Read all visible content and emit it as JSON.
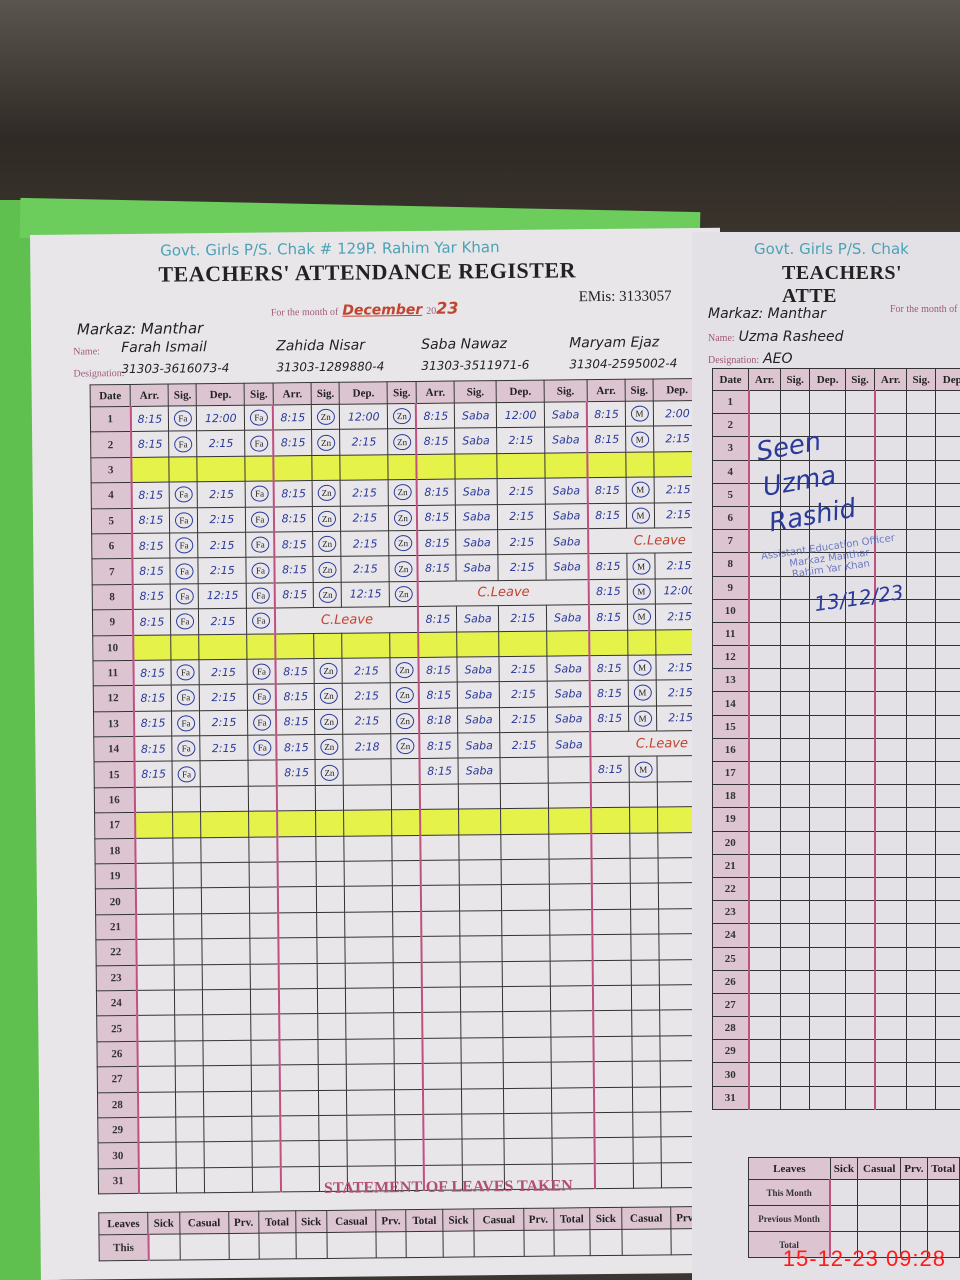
{
  "left_page": {
    "school": "Govt. Girls P/S. Chak # 129P. Rahim Yar Khan",
    "title": "TEACHERS' ATTENDANCE REGISTER",
    "month_label": "For the month of",
    "month": "December",
    "year_prefix": "20",
    "year": "23",
    "emis": "EMis: 3133057",
    "markaz": "Markaz: Manthar",
    "name_label": "Name:",
    "designation_label": "Designation:",
    "date_header": "Date",
    "col_headers": [
      "Arr.",
      "Sig.",
      "Dep.",
      "Sig."
    ],
    "teachers": [
      {
        "name": "Farah Ismail",
        "cnic": "31303-3616073-4",
        "sig": "Fa",
        "entries": {
          "1": [
            "8:15",
            "12:00"
          ],
          "2": [
            "8:15",
            "2:15"
          ],
          "4": [
            "8:15",
            "2:15"
          ],
          "5": [
            "8:15",
            "2:15"
          ],
          "6": [
            "8:15",
            "2:15"
          ],
          "7": [
            "8:15",
            "2:15"
          ],
          "8": [
            "8:15",
            "12:15"
          ],
          "9": [
            "8:15",
            "2:15"
          ],
          "11": [
            "8:15",
            "2:15"
          ],
          "12": [
            "8:15",
            "2:15"
          ],
          "13": [
            "8:15",
            "2:15"
          ],
          "14": [
            "8:15",
            "2:15"
          ],
          "15": [
            "8:15",
            ""
          ]
        }
      },
      {
        "name": "Zahida Nisar",
        "cnic": "31303-1289880-4",
        "sig": "Zn",
        "entries": {
          "1": [
            "8:15",
            "12:00"
          ],
          "2": [
            "8:15",
            "2:15"
          ],
          "4": [
            "8:15",
            "2:15"
          ],
          "5": [
            "8:15",
            "2:15"
          ],
          "6": [
            "8:15",
            "2:15"
          ],
          "7": [
            "8:15",
            "2:15"
          ],
          "8": [
            "8:15",
            "12:15"
          ],
          "9": "C.Leave",
          "11": [
            "8:15",
            "2:15"
          ],
          "12": [
            "8:15",
            "2:15"
          ],
          "13": [
            "8:15",
            "2:15"
          ],
          "14": [
            "8:15",
            "2:18"
          ],
          "15": [
            "8:15",
            ""
          ]
        }
      },
      {
        "name": "Saba Nawaz",
        "cnic": "31303-3511971-6",
        "sig": "Saba",
        "entries": {
          "1": [
            "8:15",
            "12:00"
          ],
          "2": [
            "8:15",
            "2:15"
          ],
          "4": [
            "8:15",
            "2:15"
          ],
          "5": [
            "8:15",
            "2:15"
          ],
          "6": [
            "8:15",
            "2:15"
          ],
          "7": [
            "8:15",
            "2:15"
          ],
          "8": "C.Leave",
          "9": [
            "8:15",
            "2:15"
          ],
          "11": [
            "8:15",
            "2:15"
          ],
          "12": [
            "8:15",
            "2:15"
          ],
          "13": [
            "8:18",
            "2:15"
          ],
          "14": [
            "8:15",
            "2:15"
          ],
          "15": [
            "8:15",
            ""
          ]
        }
      },
      {
        "name": "Maryam Ejaz",
        "cnic": "31304-2595002-4",
        "sig": "M",
        "entries": {
          "1": [
            "8:15",
            "2:00"
          ],
          "2": [
            "8:15",
            "2:15"
          ],
          "4": [
            "8:15",
            "2:15"
          ],
          "5": [
            "8:15",
            "2:15"
          ],
          "6": "C.Leave",
          "7": [
            "8:15",
            "2:15"
          ],
          "8": [
            "8:15",
            "12:00"
          ],
          "9": [
            "8:15",
            "2:15"
          ],
          "11": [
            "8:15",
            "2:15"
          ],
          "12": [
            "8:15",
            "2:15"
          ],
          "13": [
            "8:15",
            "2:15"
          ],
          "14": "C.Leave",
          "15": [
            "8:15",
            ""
          ]
        }
      }
    ],
    "highlighted_dates": [
      3,
      10,
      17
    ],
    "statement_title": "STATEMENT OF LEAVES TAKEN",
    "leave_headers": [
      "Sick",
      "Casual",
      "Prv.",
      "Total"
    ],
    "leaves_label": "Leaves",
    "this_month_label": "This"
  },
  "right_page": {
    "school": "Govt. Girls P/S. Chak",
    "title": "TEACHERS' ATTE",
    "month_label": "For the month of",
    "markaz": "Markaz: Manthar",
    "name": "Uzma Rasheed",
    "designation": "AEO",
    "signature": "Seen  Uzma Rashid",
    "stamp": [
      "Assistant Education Officer",
      "Markaz Manthar",
      "Rahim Yar Khan"
    ],
    "sign_date": "13/12/23",
    "leaves_label": "Leaves",
    "this_month": "This Month",
    "previous_month": "Previous Month",
    "total": "Total"
  },
  "timestamp": "15-12-23  09:28",
  "colors": {
    "highlight": "#e4f24a",
    "header_pink": "#dcc4d0",
    "ink_blue": "#2a3a9a",
    "ink_red": "#c0442f",
    "timestamp": "#ff1a1a"
  }
}
